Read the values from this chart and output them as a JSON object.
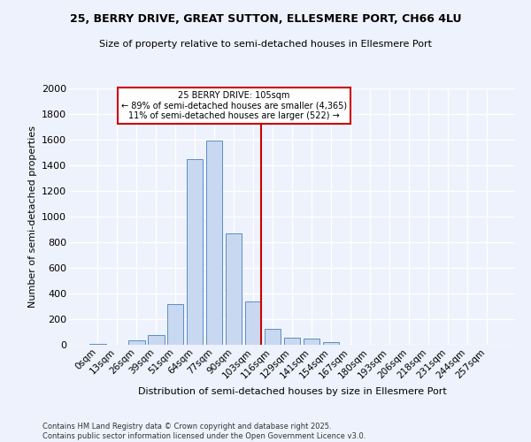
{
  "title": "25, BERRY DRIVE, GREAT SUTTON, ELLESMERE PORT, CH66 4LU",
  "subtitle": "Size of property relative to semi-detached houses in Ellesmere Port",
  "xlabel": "Distribution of semi-detached houses by size in Ellesmere Port",
  "ylabel": "Number of semi-detached properties",
  "footnote": "Contains HM Land Registry data © Crown copyright and database right 2025.\nContains public sector information licensed under the Open Government Licence v3.0.",
  "bar_labels": [
    "0sqm",
    "13sqm",
    "26sqm",
    "39sqm",
    "51sqm",
    "64sqm",
    "77sqm",
    "90sqm",
    "103sqm",
    "116sqm",
    "129sqm",
    "141sqm",
    "154sqm",
    "167sqm",
    "180sqm",
    "193sqm",
    "206sqm",
    "218sqm",
    "231sqm",
    "244sqm",
    "257sqm"
  ],
  "bar_values": [
    10,
    0,
    35,
    75,
    320,
    1450,
    1590,
    870,
    340,
    125,
    58,
    48,
    22,
    0,
    0,
    0,
    0,
    0,
    0,
    0,
    0
  ],
  "bar_color": "#c8d8f0",
  "bar_edge_color": "#5b8ec4",
  "property_line_x": 8,
  "property_sqm": 105,
  "property_label": "25 BERRY DRIVE: 105sqm",
  "pct_smaller": 89,
  "count_smaller": 4365,
  "pct_larger": 11,
  "count_larger": 522,
  "vline_color": "#cc0000",
  "annotation_box_color": "#cc0000",
  "background_color": "#eef2fc",
  "grid_color": "#ffffff",
  "ylim": [
    0,
    2000
  ],
  "yticks": [
    0,
    200,
    400,
    600,
    800,
    1000,
    1200,
    1400,
    1600,
    1800,
    2000
  ]
}
